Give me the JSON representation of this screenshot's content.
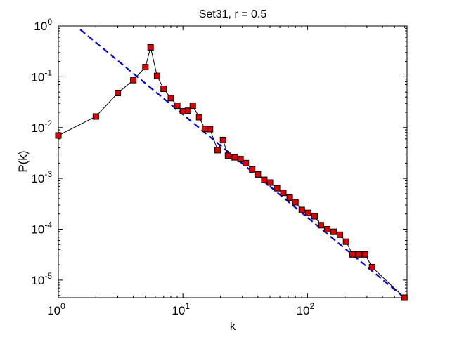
{
  "chart_data": {
    "type": "line",
    "title": "Set31, r = 0.5",
    "xlabel": "k",
    "ylabel": "P(k)",
    "xscale": "log",
    "yscale": "log",
    "xlim": [
      1,
      630
    ],
    "ylim": [
      4.5e-06,
      1
    ],
    "grid": false,
    "legend": "none",
    "x_ticks": [
      {
        "value": 1,
        "base": "10",
        "exp": "0"
      },
      {
        "value": 10,
        "base": "10",
        "exp": "1"
      },
      {
        "value": 100,
        "base": "10",
        "exp": "2"
      }
    ],
    "y_ticks": [
      {
        "value": 1,
        "base": "10",
        "exp": "0"
      },
      {
        "value": 0.1,
        "base": "10",
        "exp": "-1"
      },
      {
        "value": 0.01,
        "base": "10",
        "exp": "-2"
      },
      {
        "value": 0.001,
        "base": "10",
        "exp": "-3"
      },
      {
        "value": 0.0001,
        "base": "10",
        "exp": "-4"
      },
      {
        "value": 1e-05,
        "base": "10",
        "exp": "-5"
      }
    ],
    "series": [
      {
        "style": "black-line-red-square-markers",
        "color": "#000000",
        "marker_color": "#dd0000",
        "points": [
          [
            1,
            0.007
          ],
          [
            2,
            0.0165
          ],
          [
            3,
            0.048
          ],
          [
            4,
            0.086
          ],
          [
            5,
            0.155
          ],
          [
            5.5,
            0.38
          ],
          [
            6.2,
            0.104
          ],
          [
            7,
            0.058
          ],
          [
            8,
            0.038
          ],
          [
            9,
            0.027
          ],
          [
            10,
            0.021
          ],
          [
            11,
            0.0215
          ],
          [
            12,
            0.027
          ],
          [
            13.5,
            0.016
          ],
          [
            15,
            0.0094
          ],
          [
            16.5,
            0.0093
          ],
          [
            19,
            0.0036
          ],
          [
            21,
            0.0057
          ],
          [
            23,
            0.0028
          ],
          [
            26,
            0.0026
          ],
          [
            29,
            0.0024
          ],
          [
            32,
            0.002
          ],
          [
            36,
            0.0015
          ],
          [
            40,
            0.0012
          ],
          [
            45,
            0.00094
          ],
          [
            50,
            0.00083
          ],
          [
            57,
            0.00064
          ],
          [
            64,
            0.00052
          ],
          [
            72,
            0.00042
          ],
          [
            80,
            0.00034
          ],
          [
            90,
            0.00024
          ],
          [
            101,
            0.00021
          ],
          [
            114,
            0.00018
          ],
          [
            128,
            0.00012
          ],
          [
            144,
            0.0001
          ],
          [
            162,
            8.9e-05
          ],
          [
            182,
            7.8e-05
          ],
          [
            204,
            5.7e-05
          ],
          [
            230,
            3.2e-05
          ],
          [
            258,
            3.2e-05
          ],
          [
            290,
            3.2e-05
          ],
          [
            330,
            1.8e-05
          ],
          [
            600,
            4.5e-06
          ]
        ]
      },
      {
        "style": "dashed-fit",
        "color": "#0000dd",
        "points": [
          [
            1.5,
            0.85
          ],
          [
            600,
            4.5e-06
          ]
        ]
      }
    ]
  }
}
